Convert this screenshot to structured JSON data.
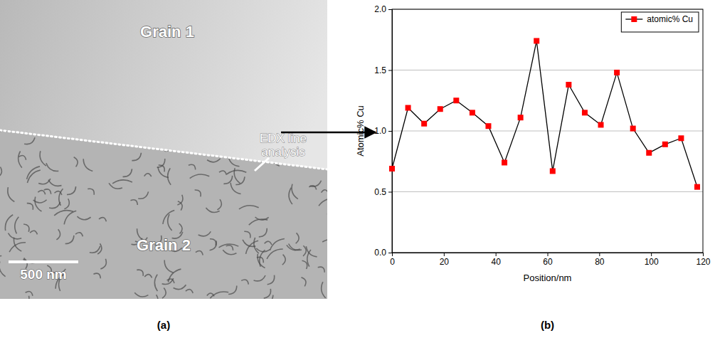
{
  "chart_data": {
    "type": "line",
    "x_label": "Position/nm",
    "y_label": "Atomic% Cu",
    "x": [
      0,
      6.2,
      12.4,
      18.6,
      24.8,
      31,
      37.2,
      43.4,
      49.6,
      55.8,
      62,
      68.2,
      74.4,
      80.6,
      86.8,
      93,
      99.2,
      105.4,
      111.6,
      117.8
    ],
    "series": [
      {
        "name": "atomic% Cu",
        "color": "#ff0000",
        "marker": "square",
        "line_style": "solid",
        "values": [
          0.69,
          1.19,
          1.06,
          1.18,
          1.25,
          1.15,
          1.04,
          0.74,
          1.11,
          1.74,
          0.67,
          1.38,
          1.15,
          1.05,
          1.48,
          1.02,
          0.82,
          0.89,
          0.94,
          0.54
        ]
      }
    ],
    "xlim": [
      0,
      120
    ],
    "xticks": [
      0,
      20,
      40,
      60,
      80,
      100,
      120
    ],
    "ylim": [
      0,
      2
    ],
    "yticks": [
      {
        "value": 0,
        "label": "0.0"
      },
      {
        "value": 0.5,
        "label": "0.5"
      },
      {
        "value": 1,
        "label": "1.0"
      },
      {
        "value": 1.5,
        "label": "1.5"
      },
      {
        "value": 2,
        "label": "2.0"
      }
    ],
    "grid": "y",
    "legend": "upper right"
  },
  "micrograph": {
    "grain_labels": [
      "Grain 1",
      "Grain 2"
    ],
    "line_label": "EDX line analysis",
    "scale_bar": "500 nm"
  },
  "panel_labels": [
    "(a)",
    "(b)"
  ]
}
